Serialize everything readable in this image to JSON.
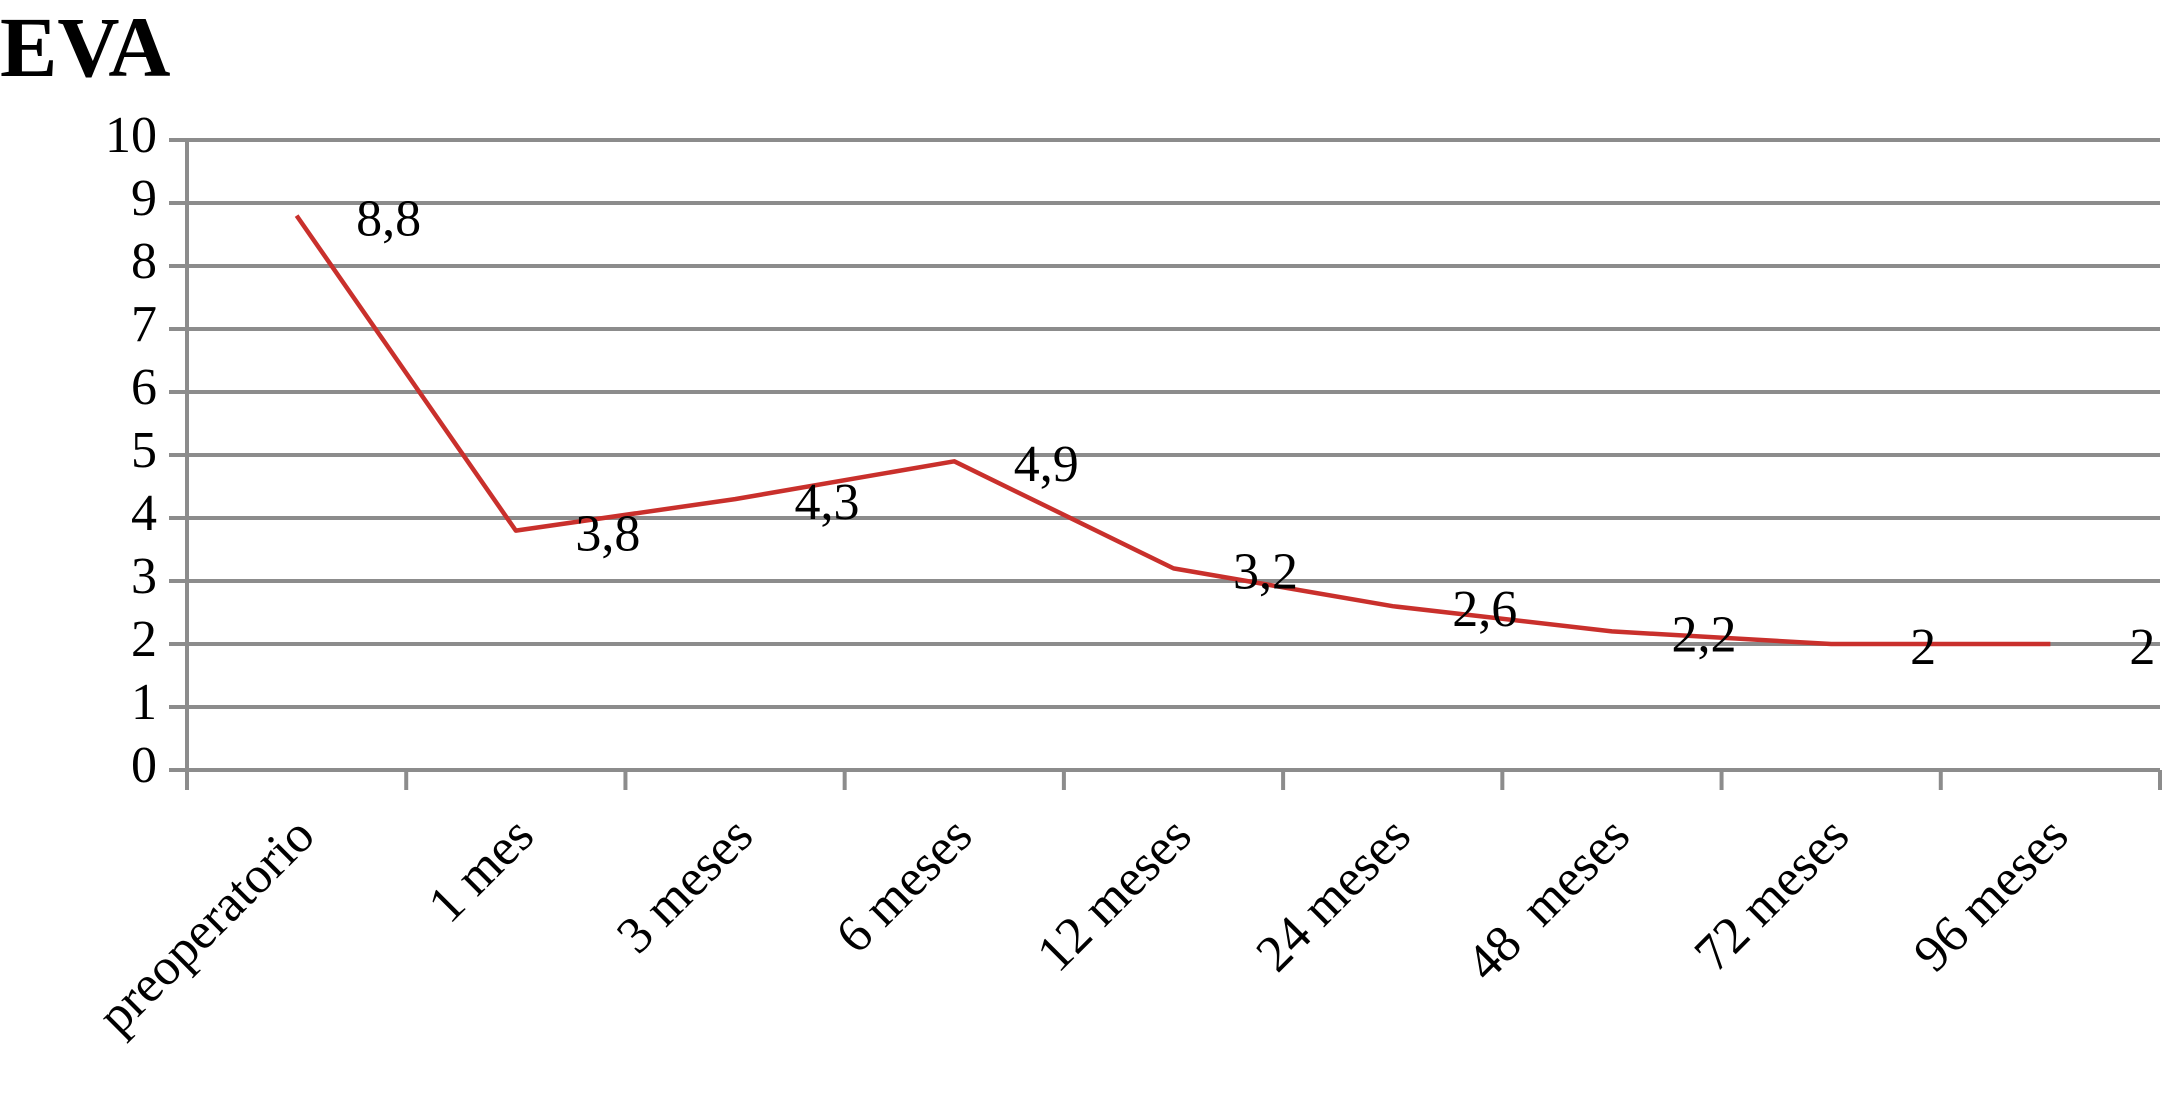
{
  "chart_data": {
    "type": "line",
    "title": "EVA",
    "categories": [
      "preoperatorio",
      "1 mes",
      "3 meses",
      "6 meses",
      "12 meses",
      "24 meses",
      "48  meses",
      "72 meses",
      "96 meses"
    ],
    "series": [
      {
        "color": "#c9302c",
        "values": [
          8.8,
          3.8,
          4.3,
          4.9,
          3.2,
          2.6,
          2.2,
          2,
          2
        ],
        "value_labels": [
          "8,8",
          "3,8",
          "4,3",
          "4,9",
          "3,2",
          "2,6",
          "2,2",
          "2",
          "2"
        ]
      }
    ],
    "ylim": [
      0,
      10
    ],
    "yticks": [
      0,
      1,
      2,
      3,
      4,
      5,
      6,
      7,
      8,
      9,
      10
    ],
    "grid": true
  }
}
